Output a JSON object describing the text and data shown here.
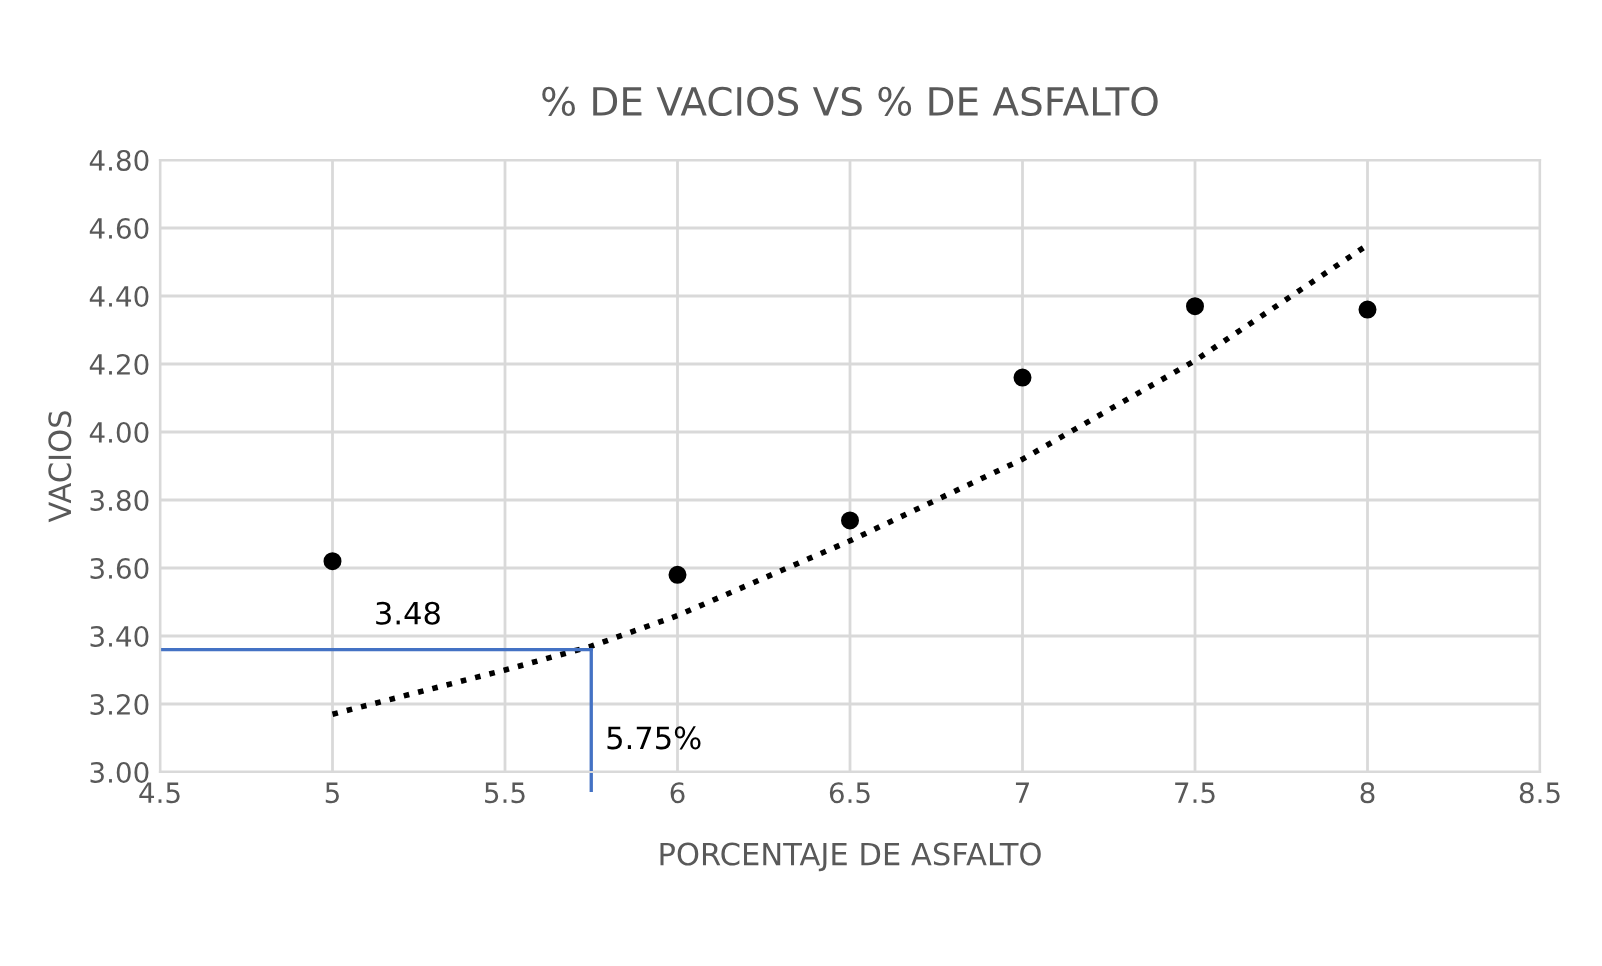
{
  "chart_data": {
    "type": "scatter",
    "title": "% DE VACIOS VS % DE ASFALTO",
    "xlabel": "PORCENTAJE DE ASFALTO",
    "ylabel": "VACIOS",
    "series": [
      {
        "color": "#000000",
        "x": [
          5,
          6,
          6.5,
          7,
          7.5,
          8
        ],
        "values": [
          3.62,
          3.58,
          3.74,
          4.16,
          4.37,
          4.36
        ],
        "marker": "circle"
      },
      {
        "type": "line",
        "color": "#000000",
        "line_style": "dotted",
        "marker": "none",
        "x": [
          5,
          5.5,
          5.75,
          6,
          6.5,
          7,
          7.5,
          8
        ],
        "values": [
          3.17,
          3.3,
          3.37,
          3.46,
          3.68,
          3.92,
          4.21,
          4.55
        ]
      }
    ],
    "ref_lines": [
      {
        "axis": "y",
        "value": 3.36,
        "color": "#4472c4"
      },
      {
        "axis": "x",
        "value": 5.75,
        "label": "5.75%",
        "color": "#4472c4"
      }
    ],
    "annotations": [
      "3.48"
    ],
    "xlim": [
      4.5,
      8.5
    ],
    "xticks": [
      4.5,
      5,
      5.5,
      6,
      6.5,
      7,
      7.5,
      8,
      8.5
    ],
    "ylim": [
      3.0,
      4.8
    ],
    "yticks": [
      {
        "value": 3.0,
        "label": "3.00"
      },
      {
        "value": 3.2,
        "label": "3.20"
      },
      {
        "value": 3.4,
        "label": "3.40"
      },
      {
        "value": 3.6,
        "label": "3.60"
      },
      {
        "value": 3.8,
        "label": "3.80"
      },
      {
        "value": 4.0,
        "label": "4.00"
      },
      {
        "value": 4.2,
        "label": "4.20"
      },
      {
        "value": 4.4,
        "label": "4.40"
      },
      {
        "value": 4.6,
        "label": "4.60"
      },
      {
        "value": 4.8,
        "label": "4.80"
      }
    ],
    "grid": true,
    "legend": false
  }
}
